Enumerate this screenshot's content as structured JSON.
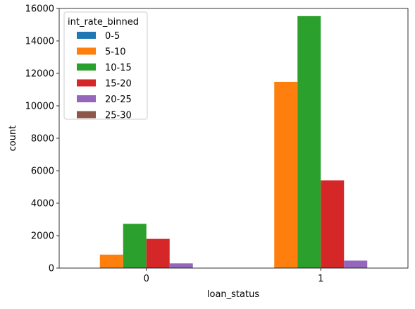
{
  "chart_data": {
    "type": "bar",
    "xlabel": "loan_status",
    "ylabel": "count",
    "categories": [
      "0",
      "1"
    ],
    "ylim": [
      0,
      16000
    ],
    "yticks": [
      0,
      2000,
      4000,
      6000,
      8000,
      10000,
      12000,
      14000,
      16000
    ],
    "grid": false,
    "legend": {
      "title": "int_rate_binned",
      "placement": "top-left"
    },
    "series": [
      {
        "name": "0-5",
        "color": "#1f77b4",
        "values": [
          0,
          0
        ]
      },
      {
        "name": "5-10",
        "color": "#ff7f0e",
        "values": [
          830,
          11480
        ]
      },
      {
        "name": "10-15",
        "color": "#2ca02c",
        "values": [
          2730,
          15530
        ]
      },
      {
        "name": "15-20",
        "color": "#d62728",
        "values": [
          1800,
          5410
        ]
      },
      {
        "name": "20-25",
        "color": "#9467bd",
        "values": [
          290,
          460
        ]
      },
      {
        "name": "25-30",
        "color": "#8c564b",
        "values": [
          0,
          0
        ]
      }
    ]
  }
}
